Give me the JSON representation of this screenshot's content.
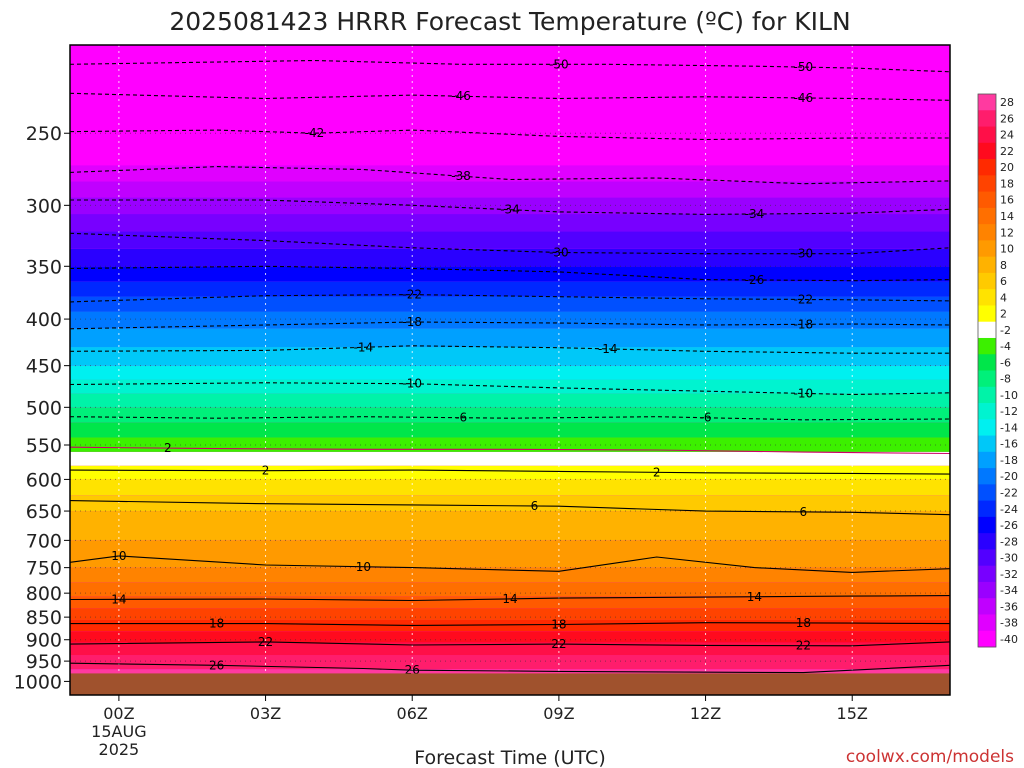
{
  "chart_data": {
    "type": "heatmap",
    "title": "2025081423 HRRR Forecast Temperature (ºC) for KILN",
    "xlabel": "Forecast Time (UTC)",
    "ylabel": "",
    "credit": "coolwx.com/models",
    "x_unit": "hours since 2025-08-15 00Z",
    "xlim": [
      -1,
      17
    ],
    "x_ticks": [
      {
        "value": 0,
        "label": "00Z",
        "sub1": "15AUG",
        "sub2": "2025"
      },
      {
        "value": 3,
        "label": "03Z"
      },
      {
        "value": 6,
        "label": "06Z"
      },
      {
        "value": 9,
        "label": "09Z"
      },
      {
        "value": 12,
        "label": "12Z"
      },
      {
        "value": 15,
        "label": "15Z"
      }
    ],
    "y_scale": "log-pressure (hPa)",
    "ylim": [
      1035,
      200
    ],
    "y_ticks": [
      250,
      300,
      350,
      400,
      450,
      500,
      550,
      600,
      650,
      700,
      750,
      800,
      850,
      900,
      950,
      1000
    ],
    "grid": true,
    "ground_below_hPa": 980,
    "colorbar": {
      "placement": "right",
      "levels": [
        28,
        26,
        24,
        22,
        20,
        18,
        16,
        14,
        12,
        10,
        8,
        6,
        4,
        2,
        -2,
        -4,
        -6,
        -8,
        -10,
        -12,
        -14,
        -16,
        -18,
        -20,
        -22,
        -24,
        -26,
        -28,
        -30,
        -32,
        -34,
        -36,
        -38,
        -40
      ],
      "colors": [
        "#ff3aa0",
        "#ff1d6c",
        "#ff0f48",
        "#ff0a1e",
        "#ff2a00",
        "#ff4300",
        "#ff5a00",
        "#ff6f00",
        "#ff8300",
        "#ff9a00",
        "#ffb200",
        "#ffca00",
        "#ffe300",
        "#ffff00",
        "#ffffff",
        "#3cf000",
        "#00e64a",
        "#00f07a",
        "#00f3a8",
        "#00f3d0",
        "#00f0f0",
        "#00c8f8",
        "#00a0ff",
        "#0078ff",
        "#0050ff",
        "#0028ff",
        "#0000ff",
        "#2a00ff",
        "#5200ff",
        "#7800ff",
        "#9a00ff",
        "#c000ff",
        "#e000ff",
        "#ff00ff"
      ]
    },
    "profile": {
      "pressure_hPa": [
        1000,
        950,
        900,
        850,
        800,
        750,
        700,
        650,
        600,
        550,
        500,
        450,
        400,
        350,
        300,
        250,
        200
      ],
      "temperature_C": [
        27.5,
        25,
        21.5,
        17.5,
        13.5,
        10,
        8,
        6,
        2,
        -3,
        -8,
        -14,
        -19,
        -26,
        -33,
        -42,
        -50
      ]
    },
    "contours": [
      {
        "label": "2",
        "temp": 2,
        "points": [
          [
            -1,
            586
          ],
          [
            3,
            587
          ],
          [
            6,
            586
          ],
          [
            9,
            588
          ],
          [
            12,
            590
          ],
          [
            15,
            591
          ],
          [
            17,
            592
          ]
        ],
        "labels_at": [
          3,
          11
        ]
      },
      {
        "label": "2",
        "temp": 2,
        "points": [
          [
            -1,
            553
          ],
          [
            2,
            555
          ],
          [
            5,
            556
          ],
          [
            8,
            556
          ],
          [
            11,
            557
          ],
          [
            14,
            560
          ],
          [
            17,
            562
          ]
        ],
        "labels_at": [
          1
        ]
      },
      {
        "label": "6",
        "temp": 6,
        "points": [
          [
            -1,
            633
          ],
          [
            3,
            638
          ],
          [
            6,
            640
          ],
          [
            9,
            642
          ],
          [
            12,
            650
          ],
          [
            15,
            652
          ],
          [
            17,
            656
          ]
        ],
        "labels_at": [
          8.5,
          14
        ]
      },
      {
        "label": "10",
        "temp": 10,
        "points": [
          [
            -1,
            740
          ],
          [
            0,
            728
          ],
          [
            3,
            745
          ],
          [
            6,
            750
          ],
          [
            9,
            757
          ],
          [
            11,
            730
          ],
          [
            13,
            750
          ],
          [
            15,
            759
          ],
          [
            17,
            752
          ]
        ],
        "labels_at": [
          0,
          5
        ]
      },
      {
        "label": "14",
        "temp": 14,
        "points": [
          [
            -1,
            813
          ],
          [
            3,
            812
          ],
          [
            6,
            815
          ],
          [
            9,
            810
          ],
          [
            12,
            808
          ],
          [
            15,
            806
          ],
          [
            17,
            805
          ]
        ],
        "labels_at": [
          0,
          8,
          13
        ]
      },
      {
        "label": "18",
        "temp": 18,
        "points": [
          [
            -1,
            864
          ],
          [
            3,
            864
          ],
          [
            6,
            868
          ],
          [
            9,
            866
          ],
          [
            12,
            862
          ],
          [
            15,
            863
          ],
          [
            17,
            864
          ]
        ],
        "labels_at": [
          2,
          9,
          14
        ]
      },
      {
        "label": "22",
        "temp": 22,
        "points": [
          [
            -1,
            910
          ],
          [
            3,
            905
          ],
          [
            6,
            912
          ],
          [
            9,
            910
          ],
          [
            12,
            913
          ],
          [
            15,
            914
          ],
          [
            17,
            905
          ]
        ],
        "labels_at": [
          3,
          9,
          14
        ]
      },
      {
        "label": "26",
        "temp": 26,
        "points": [
          [
            -1,
            955
          ],
          [
            2,
            960
          ],
          [
            5,
            968
          ],
          [
            6,
            972
          ],
          [
            9,
            975
          ],
          [
            14,
            978
          ],
          [
            17,
            960
          ]
        ],
        "labels_at": [
          2,
          6
        ]
      },
      {
        "label": "-6",
        "temp": -6,
        "points": [
          [
            -1,
            512
          ],
          [
            2,
            514
          ],
          [
            5,
            512
          ],
          [
            8,
            514
          ],
          [
            11,
            512
          ],
          [
            14,
            516
          ],
          [
            17,
            515
          ]
        ],
        "labels_at": [
          7,
          12
        ]
      },
      {
        "label": "-10",
        "temp": -10,
        "points": [
          [
            -1,
            472
          ],
          [
            3,
            470
          ],
          [
            6,
            471
          ],
          [
            9,
            476
          ],
          [
            12,
            480
          ],
          [
            15,
            484
          ],
          [
            17,
            482
          ]
        ],
        "labels_at": [
          6,
          14
        ]
      },
      {
        "label": "-14",
        "temp": -14,
        "points": [
          [
            -1,
            434
          ],
          [
            3,
            433
          ],
          [
            6,
            428
          ],
          [
            9,
            430
          ],
          [
            12,
            434
          ],
          [
            15,
            436
          ],
          [
            17,
            436
          ]
        ],
        "labels_at": [
          5,
          10
        ]
      },
      {
        "label": "-18",
        "temp": -18,
        "points": [
          [
            -1,
            410
          ],
          [
            3,
            406
          ],
          [
            6,
            403
          ],
          [
            9,
            404
          ],
          [
            12,
            406
          ],
          [
            15,
            405
          ],
          [
            17,
            406
          ]
        ],
        "labels_at": [
          6,
          14
        ]
      },
      {
        "label": "-22",
        "temp": -22,
        "points": [
          [
            -1,
            383
          ],
          [
            3,
            377
          ],
          [
            6,
            376
          ],
          [
            9,
            378
          ],
          [
            12,
            380
          ],
          [
            15,
            381
          ],
          [
            17,
            382
          ]
        ],
        "labels_at": [
          6,
          14
        ]
      },
      {
        "label": "-26",
        "temp": -26,
        "points": [
          [
            -1,
            352
          ],
          [
            3,
            350
          ],
          [
            6,
            352
          ],
          [
            9,
            355
          ],
          [
            12,
            362
          ],
          [
            15,
            363
          ],
          [
            17,
            362
          ]
        ],
        "labels_at": [
          13
        ]
      },
      {
        "label": "-30",
        "temp": -30,
        "points": [
          [
            -1,
            322
          ],
          [
            3,
            328
          ],
          [
            6,
            334
          ],
          [
            9,
            338
          ],
          [
            12,
            339
          ],
          [
            15,
            339
          ],
          [
            17,
            334
          ]
        ],
        "labels_at": [
          9,
          14
        ]
      },
      {
        "label": "-34",
        "temp": -34,
        "points": [
          [
            -1,
            296
          ],
          [
            3,
            296
          ],
          [
            6,
            300
          ],
          [
            9,
            305
          ],
          [
            12,
            307
          ],
          [
            15,
            306
          ],
          [
            17,
            303
          ]
        ],
        "labels_at": [
          8,
          13
        ]
      },
      {
        "label": "-38",
        "temp": -38,
        "points": [
          [
            -1,
            276
          ],
          [
            2,
            272
          ],
          [
            5,
            274
          ],
          [
            8,
            281
          ],
          [
            11,
            280
          ],
          [
            14,
            284
          ],
          [
            17,
            282
          ]
        ],
        "labels_at": [
          7
        ]
      },
      {
        "label": "-42",
        "temp": -42,
        "points": [
          [
            -1,
            249
          ],
          [
            2,
            248
          ],
          [
            4,
            250
          ],
          [
            6,
            248
          ],
          [
            9,
            252
          ],
          [
            12,
            254
          ],
          [
            15,
            253
          ],
          [
            17,
            253
          ]
        ],
        "labels_at": [
          4
        ]
      },
      {
        "label": "-46",
        "temp": -46,
        "points": [
          [
            -1,
            226
          ],
          [
            3,
            229
          ],
          [
            6,
            227
          ],
          [
            9,
            229
          ],
          [
            12,
            228
          ],
          [
            15,
            229
          ],
          [
            17,
            230
          ]
        ],
        "labels_at": [
          7,
          14
        ]
      },
      {
        "label": "-50",
        "temp": -50,
        "points": [
          [
            -1,
            210
          ],
          [
            4,
            208
          ],
          [
            7,
            210
          ],
          [
            10,
            210
          ],
          [
            13,
            211
          ],
          [
            15,
            212
          ],
          [
            17,
            214
          ]
        ],
        "labels_at": [
          9,
          14
        ]
      }
    ]
  }
}
